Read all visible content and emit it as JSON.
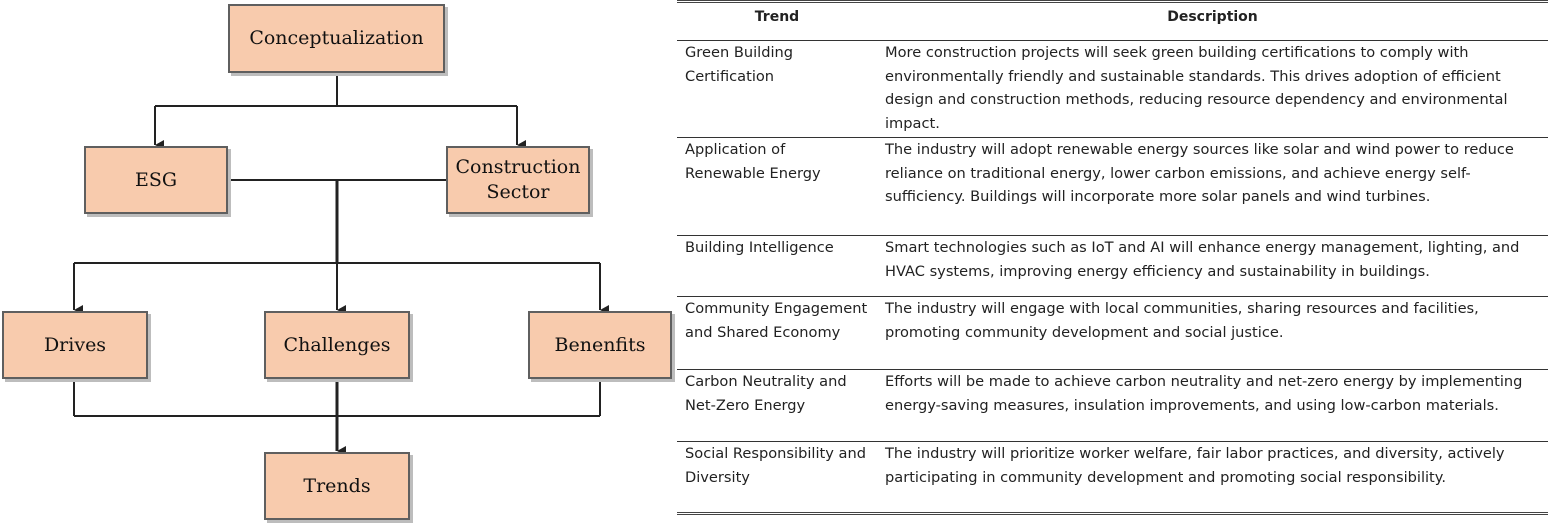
{
  "flowchart": {
    "nodes": {
      "conceptualization": "Conceptualization",
      "esg": "ESG",
      "construction": "Construction\nSector",
      "drives": "Drives",
      "challenges": "Challenges",
      "benefits": "Benenfits",
      "trends": "Trends"
    }
  },
  "table": {
    "headers": {
      "trend": "Trend",
      "description": "Description"
    },
    "rows": [
      {
        "trend": "Green Building Certification",
        "description": "More construction projects will seek green building certifications to comply with environmentally friendly and sustainable standards. This drives adoption of efficient design and construction methods, reducing resource dependency and environmental impact."
      },
      {
        "trend": "Application of Renewable Energy",
        "description": "The industry will adopt renewable energy sources like solar and wind power to reduce reliance on traditional energy, lower carbon emissions, and achieve energy self-sufficiency. Buildings will incorporate more solar panels and wind turbines."
      },
      {
        "trend": "Building Intelligence",
        "description": "Smart technologies such as IoT and AI will enhance energy management, lighting, and HVAC systems, improving energy efficiency and sustainability in buildings."
      },
      {
        "trend": "Community Engagement and Shared Economy",
        "description": "The industry will engage with local communities, sharing resources and facilities, promoting community development and social justice."
      },
      {
        "trend": "Carbon Neutrality and Net-Zero Energy",
        "description": "Efforts will be made to achieve carbon neutrality and net-zero energy by implementing energy-saving measures, insulation improvements, and using low-carbon materials."
      },
      {
        "trend": "Social Responsibility and Diversity",
        "description": "The industry will prioritize worker welfare, fair labor practices, and diversity, actively participating in community development and promoting social responsibility."
      }
    ]
  }
}
